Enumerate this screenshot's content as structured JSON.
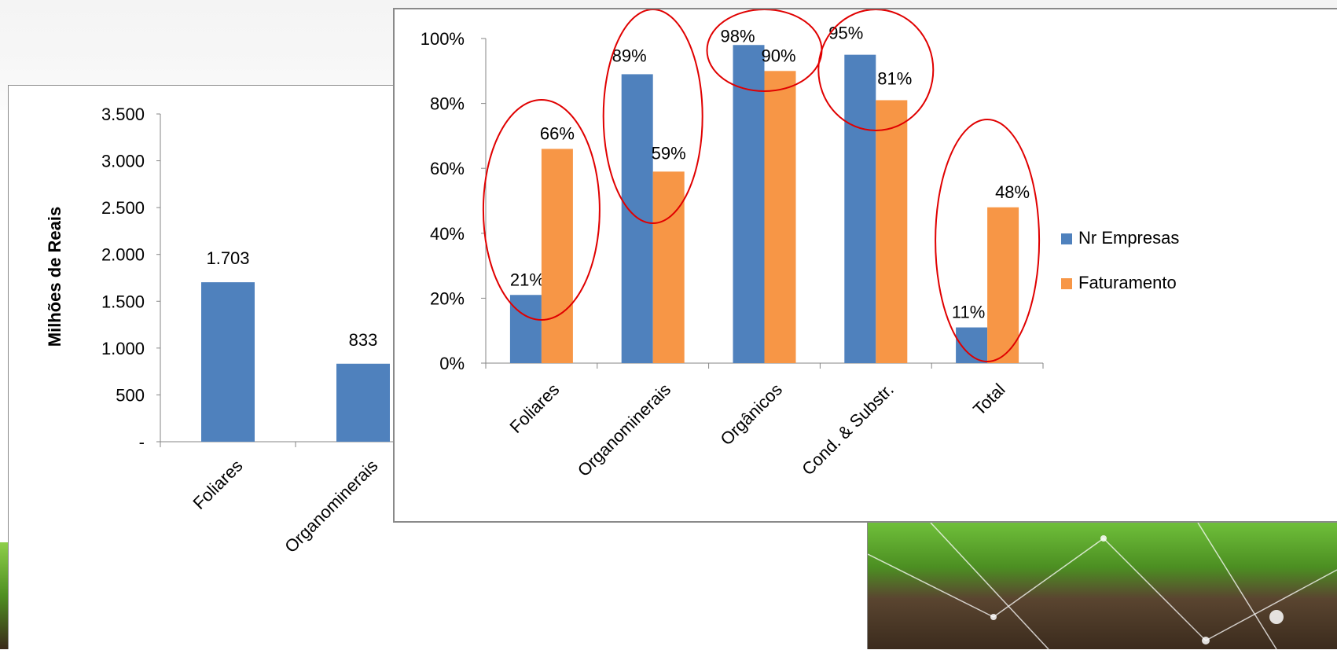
{
  "colors": {
    "nr_empresas": "#4f81bd",
    "faturamento": "#f79646",
    "highlight_ellipse": "#e00000",
    "axis": "#868686"
  },
  "chart_data": [
    {
      "type": "bar",
      "title": "",
      "xlabel": "",
      "ylabel": "Milhões de Reais",
      "ylim": [
        0,
        3500
      ],
      "yticks": [
        "-",
        "500",
        "1.000",
        "1.500",
        "2.000",
        "2.500",
        "3.000",
        "3.500"
      ],
      "categories": [
        "Foliares",
        "Organominerais"
      ],
      "values": [
        1703,
        833
      ],
      "data_labels": [
        "1.703",
        "833"
      ],
      "partially_hidden_category_labels": [
        "Or",
        "Cond. &"
      ],
      "grid": false,
      "legend": "none"
    },
    {
      "type": "bar",
      "title": "",
      "xlabel": "",
      "ylabel": "",
      "ylim": [
        0,
        100
      ],
      "yticks": [
        "0%",
        "20%",
        "40%",
        "60%",
        "80%",
        "100%"
      ],
      "categories": [
        "Foliares",
        "Organominerais",
        "Orgânicos",
        "Cond. & Substr.",
        "Total"
      ],
      "series": [
        {
          "name": "Nr Empresas",
          "values": [
            21,
            89,
            98,
            95,
            11
          ],
          "labels": [
            "21%",
            "89%",
            "98%",
            "95%",
            "11%"
          ]
        },
        {
          "name": "Faturamento",
          "values": [
            66,
            59,
            90,
            81,
            48
          ],
          "labels": [
            "66%",
            "59%",
            "90%",
            "81%",
            "48%"
          ]
        }
      ],
      "grid": false,
      "legend": "right"
    }
  ]
}
